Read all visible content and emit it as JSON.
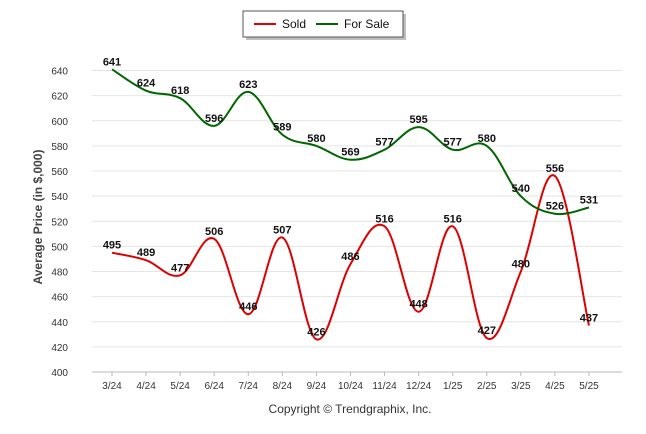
{
  "chart_data": {
    "type": "line",
    "ylabel": "Average Price (in $,000)",
    "xlabel": "",
    "ylim": [
      400,
      650
    ],
    "yticks": [
      400,
      420,
      440,
      460,
      480,
      500,
      520,
      540,
      560,
      580,
      600,
      620,
      640
    ],
    "categories": [
      "3/24",
      "4/24",
      "5/24",
      "6/24",
      "7/24",
      "8/24",
      "9/24",
      "10/24",
      "11/24",
      "12/24",
      "1/25",
      "2/25",
      "3/25",
      "4/25",
      "5/25"
    ],
    "legend_position": "top-center",
    "grid": true,
    "series": [
      {
        "name": "Sold",
        "color": "#dd0000",
        "values": [
          495,
          489,
          477,
          506,
          446,
          507,
          426,
          486,
          516,
          448,
          516,
          427,
          480,
          556,
          437
        ]
      },
      {
        "name": "For Sale",
        "color": "#006600",
        "values": [
          641,
          624,
          618,
          596,
          623,
          589,
          580,
          569,
          577,
          595,
          577,
          580,
          540,
          526,
          531
        ]
      }
    ]
  },
  "copyright": "Copyright © Trendgraphix, Inc."
}
